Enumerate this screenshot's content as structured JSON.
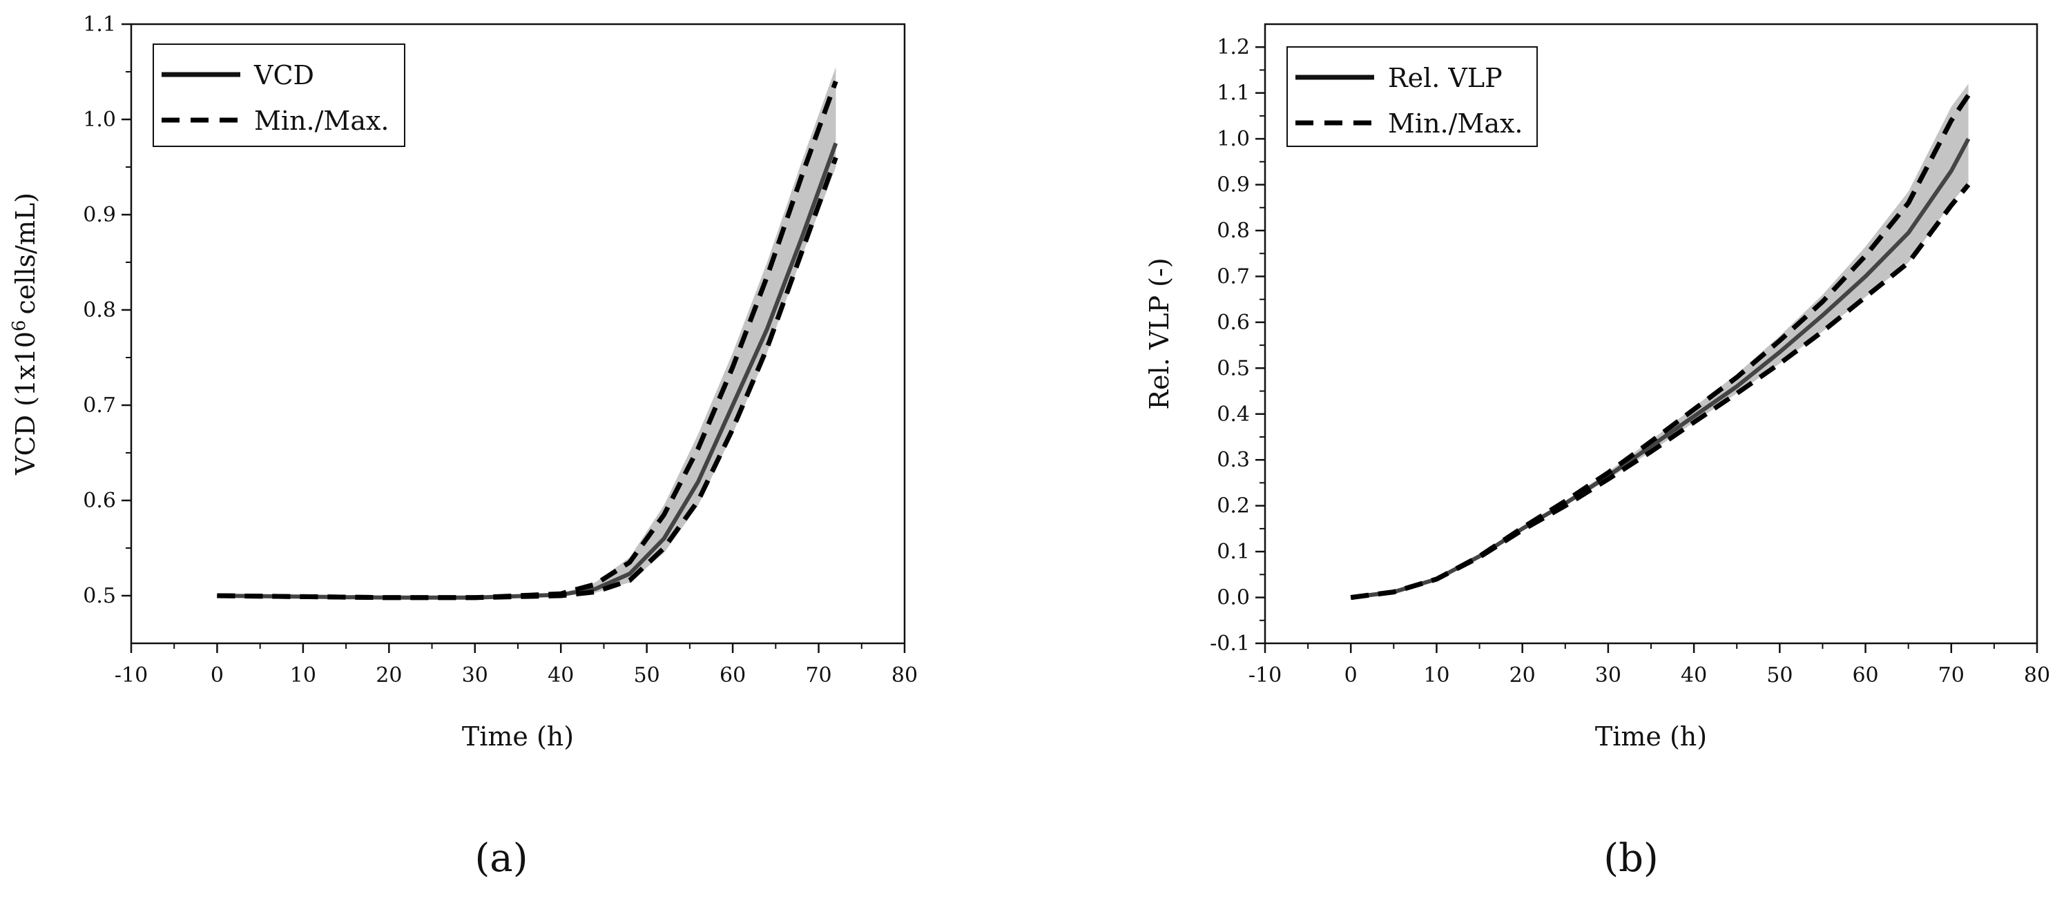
{
  "colors": {
    "axis": "#111111",
    "band": "#c4c4c4",
    "mean_line": "#444444",
    "minmax_line": "#000000"
  },
  "chart_data": [
    {
      "panel_label": "(a)",
      "type": "line",
      "title": "",
      "xlabel": "Time (h)",
      "ylabel": "VCD (1x10^6 cells/mL)",
      "ylabel_parts": {
        "before": "VCD (1x10",
        "sup": "6",
        "after": "cells/mL)"
      },
      "xlim": [
        -10,
        80
      ],
      "ylim": [
        0.45,
        1.1
      ],
      "xticks": [
        -10,
        0,
        10,
        20,
        30,
        40,
        50,
        60,
        70,
        80
      ],
      "xtick_labels": [
        "-10",
        "0",
        "10",
        "20",
        "30",
        "40",
        "50",
        "60",
        "70",
        "80"
      ],
      "yticks": [
        0.5,
        0.6,
        0.7,
        0.8,
        0.9,
        1.0,
        1.1
      ],
      "ytick_labels": [
        "0.5",
        "0.6",
        "0.7",
        "0.8",
        "0.9",
        "1.0",
        "1.1"
      ],
      "legend": {
        "position": "top-left",
        "entries": [
          {
            "label": "VCD",
            "style": "solid"
          },
          {
            "label": "Min./Max.",
            "style": "dashed"
          }
        ]
      },
      "x": [
        0,
        10,
        20,
        30,
        40,
        44,
        48,
        52,
        56,
        60,
        64,
        68,
        72
      ],
      "series": [
        {
          "name": "VCD",
          "style": "solid",
          "values": [
            0.5,
            0.499,
            0.498,
            0.498,
            0.501,
            0.507,
            0.523,
            0.56,
            0.62,
            0.7,
            0.78,
            0.875,
            0.975
          ]
        },
        {
          "name": "Max.",
          "style": "dashed",
          "values": [
            0.5,
            0.499,
            0.498,
            0.498,
            0.502,
            0.512,
            0.535,
            0.585,
            0.655,
            0.74,
            0.835,
            0.94,
            1.04
          ]
        },
        {
          "name": "Min.",
          "style": "dashed",
          "values": [
            0.5,
            0.499,
            0.498,
            0.498,
            0.5,
            0.504,
            0.516,
            0.55,
            0.6,
            0.675,
            0.76,
            0.86,
            0.96
          ]
        }
      ],
      "band": {
        "name": "Min./Max. range",
        "upper": [
          0.5,
          0.499,
          0.498,
          0.498,
          0.502,
          0.514,
          0.54,
          0.595,
          0.67,
          0.755,
          0.85,
          0.955,
          1.055
        ],
        "lower": [
          0.5,
          0.499,
          0.498,
          0.498,
          0.5,
          0.503,
          0.514,
          0.545,
          0.595,
          0.67,
          0.755,
          0.855,
          0.95
        ]
      }
    },
    {
      "panel_label": "(b)",
      "type": "line",
      "title": "",
      "xlabel": "Time (h)",
      "ylabel": "Rel. VLP (-)",
      "xlim": [
        -10,
        80
      ],
      "ylim": [
        -0.1,
        1.25
      ],
      "xticks": [
        -10,
        0,
        10,
        20,
        30,
        40,
        50,
        60,
        70,
        80
      ],
      "xtick_labels": [
        "-10",
        "0",
        "10",
        "20",
        "30",
        "40",
        "50",
        "60",
        "70",
        "80"
      ],
      "yticks": [
        -0.1,
        0.0,
        0.1,
        0.2,
        0.3,
        0.4,
        0.5,
        0.6,
        0.7,
        0.8,
        0.9,
        1.0,
        1.1,
        1.2
      ],
      "ytick_labels": [
        "-0.1",
        "0.0",
        "0.1",
        "0.2",
        "0.3",
        "0.4",
        "0.5",
        "0.6",
        "0.7",
        "0.8",
        "0.9",
        "1.0",
        "1.1",
        "1.2"
      ],
      "legend": {
        "position": "top-left",
        "entries": [
          {
            "label": "Rel. VLP",
            "style": "solid"
          },
          {
            "label": "Min./Max.",
            "style": "dashed"
          }
        ]
      },
      "x": [
        0,
        5,
        10,
        15,
        20,
        25,
        30,
        35,
        40,
        45,
        50,
        55,
        60,
        65,
        70,
        72
      ],
      "series": [
        {
          "name": "Rel. VLP",
          "style": "solid",
          "values": [
            0.0,
            0.012,
            0.04,
            0.09,
            0.15,
            0.205,
            0.265,
            0.33,
            0.395,
            0.46,
            0.535,
            0.615,
            0.7,
            0.795,
            0.93,
            1.0
          ]
        },
        {
          "name": "Max.",
          "style": "dashed",
          "values": [
            0.0,
            0.012,
            0.04,
            0.09,
            0.152,
            0.21,
            0.272,
            0.34,
            0.41,
            0.48,
            0.56,
            0.645,
            0.745,
            0.86,
            1.04,
            1.095
          ]
        },
        {
          "name": "Min.",
          "style": "dashed",
          "values": [
            0.0,
            0.012,
            0.04,
            0.088,
            0.147,
            0.2,
            0.258,
            0.318,
            0.382,
            0.445,
            0.51,
            0.58,
            0.655,
            0.73,
            0.855,
            0.9
          ]
        }
      ],
      "band": {
        "name": "Min./Max. range",
        "upper": [
          0.0,
          0.012,
          0.04,
          0.09,
          0.152,
          0.21,
          0.274,
          0.343,
          0.415,
          0.487,
          0.57,
          0.66,
          0.765,
          0.885,
          1.07,
          1.12
        ],
        "lower": [
          0.0,
          0.012,
          0.04,
          0.088,
          0.147,
          0.2,
          0.258,
          0.318,
          0.382,
          0.445,
          0.51,
          0.58,
          0.655,
          0.73,
          0.86,
          0.905
        ]
      }
    }
  ]
}
